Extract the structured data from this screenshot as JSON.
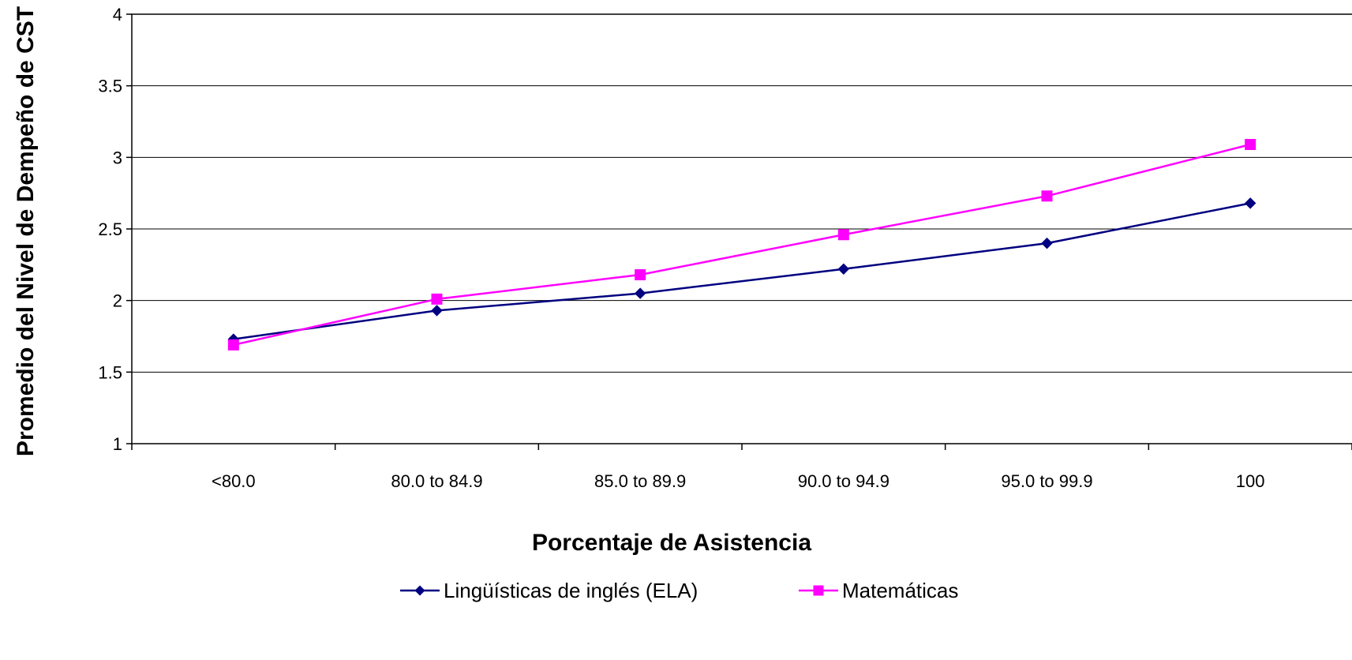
{
  "chart_data": {
    "type": "line",
    "title": "",
    "xlabel": "Porcentaje de Asistencia",
    "ylabel": "Promedio del Nivel de Dempeño de CST",
    "categories": [
      "<80.0",
      "80.0 to 84.9",
      "85.0 to 89.9",
      "90.0 to 94.9",
      "95.0 to 99.9",
      "100"
    ],
    "ylim": [
      1,
      4
    ],
    "yticks": [
      1,
      1.5,
      2,
      2.5,
      3,
      3.5,
      4
    ],
    "ytick_labels": [
      "1",
      "1.5",
      "2",
      "2.5",
      "3",
      "3.5",
      "4"
    ],
    "grid": "horizontal",
    "legend_position": "bottom",
    "series": [
      {
        "name": "Lingüísticas de inglés (ELA)",
        "values": [
          1.73,
          1.93,
          2.05,
          2.22,
          2.4,
          2.68
        ],
        "color": "#000080",
        "marker": "diamond"
      },
      {
        "name": "Matemáticas",
        "values": [
          1.69,
          2.01,
          2.18,
          2.46,
          2.73,
          3.09
        ],
        "color": "#FF00FF",
        "marker": "square"
      }
    ]
  }
}
